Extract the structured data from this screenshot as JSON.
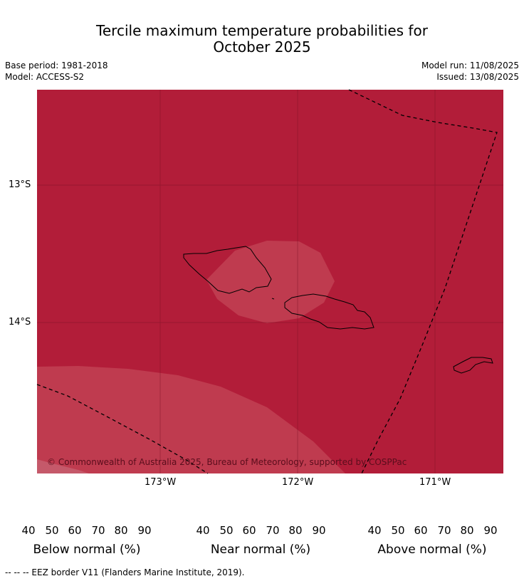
{
  "title_line1": "Tercile maximum temperature probabilities for",
  "title_line2": "October 2025",
  "base_period": "Base period: 1981-2018",
  "model": "Model: ACCESS-S2",
  "model_run": "Model run: 11/08/2025",
  "issued": "Issued: 13/08/2025",
  "map": {
    "lat_labels": [
      "13°S",
      "14°S"
    ],
    "lon_labels": [
      "173°W",
      "172°W",
      "171°W"
    ],
    "copyright": "© Commonwealth of Australia 2025, Bureau of Meteorology, supported by COSPPac",
    "colors": {
      "above_80_90": "#b21d39",
      "above_70_80": "#bf3b4f",
      "border": "#000000"
    }
  },
  "colorbars": [
    {
      "name": "below",
      "label": "Below normal (%)",
      "ticks": [
        "40",
        "50",
        "60",
        "70",
        "80",
        "90"
      ],
      "colors": [
        "#c8e1e7",
        "#a8c8ce",
        "#89b7c3",
        "#6badbc",
        "#4a9eaf"
      ],
      "extend_color": "#2e8fa3"
    },
    {
      "name": "near",
      "label": "Near normal (%)",
      "ticks": [
        "40",
        "50",
        "60",
        "70",
        "80",
        "90"
      ],
      "colors": [
        "#e6e6e6",
        "#d8d8d8",
        "#c8c8c8",
        "#b5b5b5",
        "#a0a0a0"
      ],
      "extend_color": "#888888"
    },
    {
      "name": "above",
      "label": "Above normal (%)",
      "ticks": [
        "40",
        "50",
        "60",
        "70",
        "80",
        "90"
      ],
      "colors": [
        "#e1b8bf",
        "#d798a2",
        "#cf7a86",
        "#c5596a",
        "#b8304a"
      ],
      "extend_color": "#a8183a"
    }
  ],
  "footer": "--  --  -- EEZ border V11 (Flanders Marine Institute, 2019)."
}
